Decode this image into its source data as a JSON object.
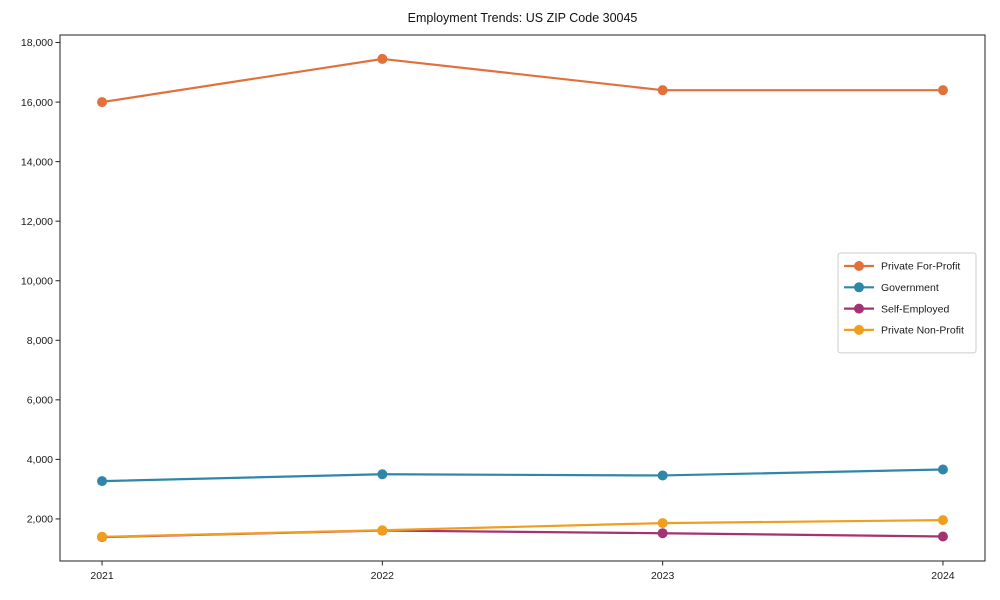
{
  "chart_data": {
    "type": "line",
    "title": "Employment Trends: US ZIP Code 30045",
    "x": [
      2021,
      2022,
      2023,
      2024
    ],
    "x_tick_labels": [
      "2021",
      "2022",
      "2023",
      "2024"
    ],
    "series": [
      {
        "name": "Private For-Profit",
        "color": "#e1703b",
        "values": [
          16000,
          17450,
          16400,
          16400
        ]
      },
      {
        "name": "Government",
        "color": "#2e87a8",
        "values": [
          3270,
          3500,
          3460,
          3660
        ]
      },
      {
        "name": "Self-Employed",
        "color": "#a53273",
        "values": [
          1390,
          1610,
          1520,
          1410
        ]
      },
      {
        "name": "Private Non-Profit",
        "color": "#f19d1d",
        "values": [
          1400,
          1620,
          1860,
          1960
        ]
      }
    ],
    "yticks": [
      2000,
      4000,
      6000,
      8000,
      10000,
      12000,
      14000,
      16000,
      18000
    ],
    "ytick_labels": [
      "2,000",
      "4,000",
      "6,000",
      "8,000",
      "10,000",
      "12,000",
      "14,000",
      "16,000",
      "18,000"
    ],
    "xlim": [
      2020.85,
      2024.15
    ],
    "ylim": [
      587,
      18253
    ],
    "xlabel": "",
    "ylabel": "",
    "grid": false,
    "legend_position": "center right",
    "marker": "circle",
    "line_width": 2.2,
    "marker_radius": 5,
    "spine_color": "#222222",
    "legend_border_color": "#cccccc",
    "background_color": "#ffffff"
  }
}
